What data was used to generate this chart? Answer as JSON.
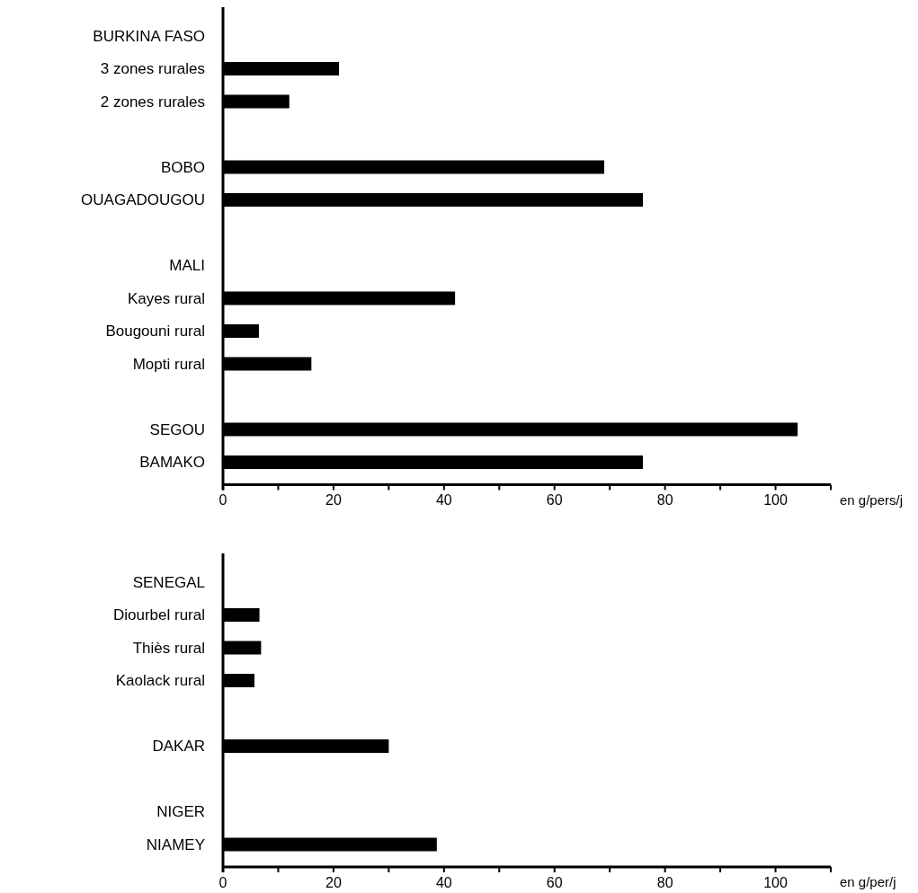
{
  "chart_data": [
    {
      "type": "bar",
      "orientation": "horizontal",
      "xlabel": "en g/pers/j",
      "color": "#000000",
      "categories": [
        "BURKINA FASO",
        "3 zones rurales",
        "2 zones rurales",
        null,
        "BOBO",
        "OUAGADOUGOU",
        null,
        "MALI",
        "Kayes rural",
        "Bougouni rural",
        "Mopti rural",
        null,
        "SEGOU",
        "BAMAKO"
      ],
      "values": [
        null,
        21,
        12,
        null,
        69,
        76,
        null,
        null,
        42,
        6.5,
        16,
        null,
        104,
        76
      ],
      "xlim": [
        0,
        110
      ],
      "xticks": [
        0,
        {
          "value": 10,
          "label": null
        },
        20,
        {
          "value": 30,
          "label": null
        },
        40,
        {
          "value": 50,
          "label": null
        },
        60,
        {
          "value": 70,
          "label": null
        },
        80,
        {
          "value": 90,
          "label": null
        },
        100,
        {
          "value": 110,
          "label": null
        }
      ]
    },
    {
      "type": "bar",
      "orientation": "horizontal",
      "xlabel": "en g/per/j",
      "color": "#000000",
      "categories": [
        "SENEGAL",
        "Diourbel rural",
        "Thiès rural",
        "Kaolack rural",
        null,
        "DAKAR",
        null,
        "NIGER",
        "NIAMEY"
      ],
      "values": [
        null,
        6.6,
        6.9,
        5.7,
        null,
        30,
        null,
        null,
        38.7
      ],
      "xlim": [
        0,
        110
      ],
      "xticks": [
        0,
        {
          "value": 10,
          "label": null
        },
        20,
        {
          "value": 30,
          "label": null
        },
        40,
        {
          "value": 50,
          "label": null
        },
        60,
        {
          "value": 70,
          "label": null
        },
        80,
        {
          "value": 90,
          "label": null
        },
        100,
        {
          "value": 110,
          "label": null
        }
      ]
    }
  ]
}
